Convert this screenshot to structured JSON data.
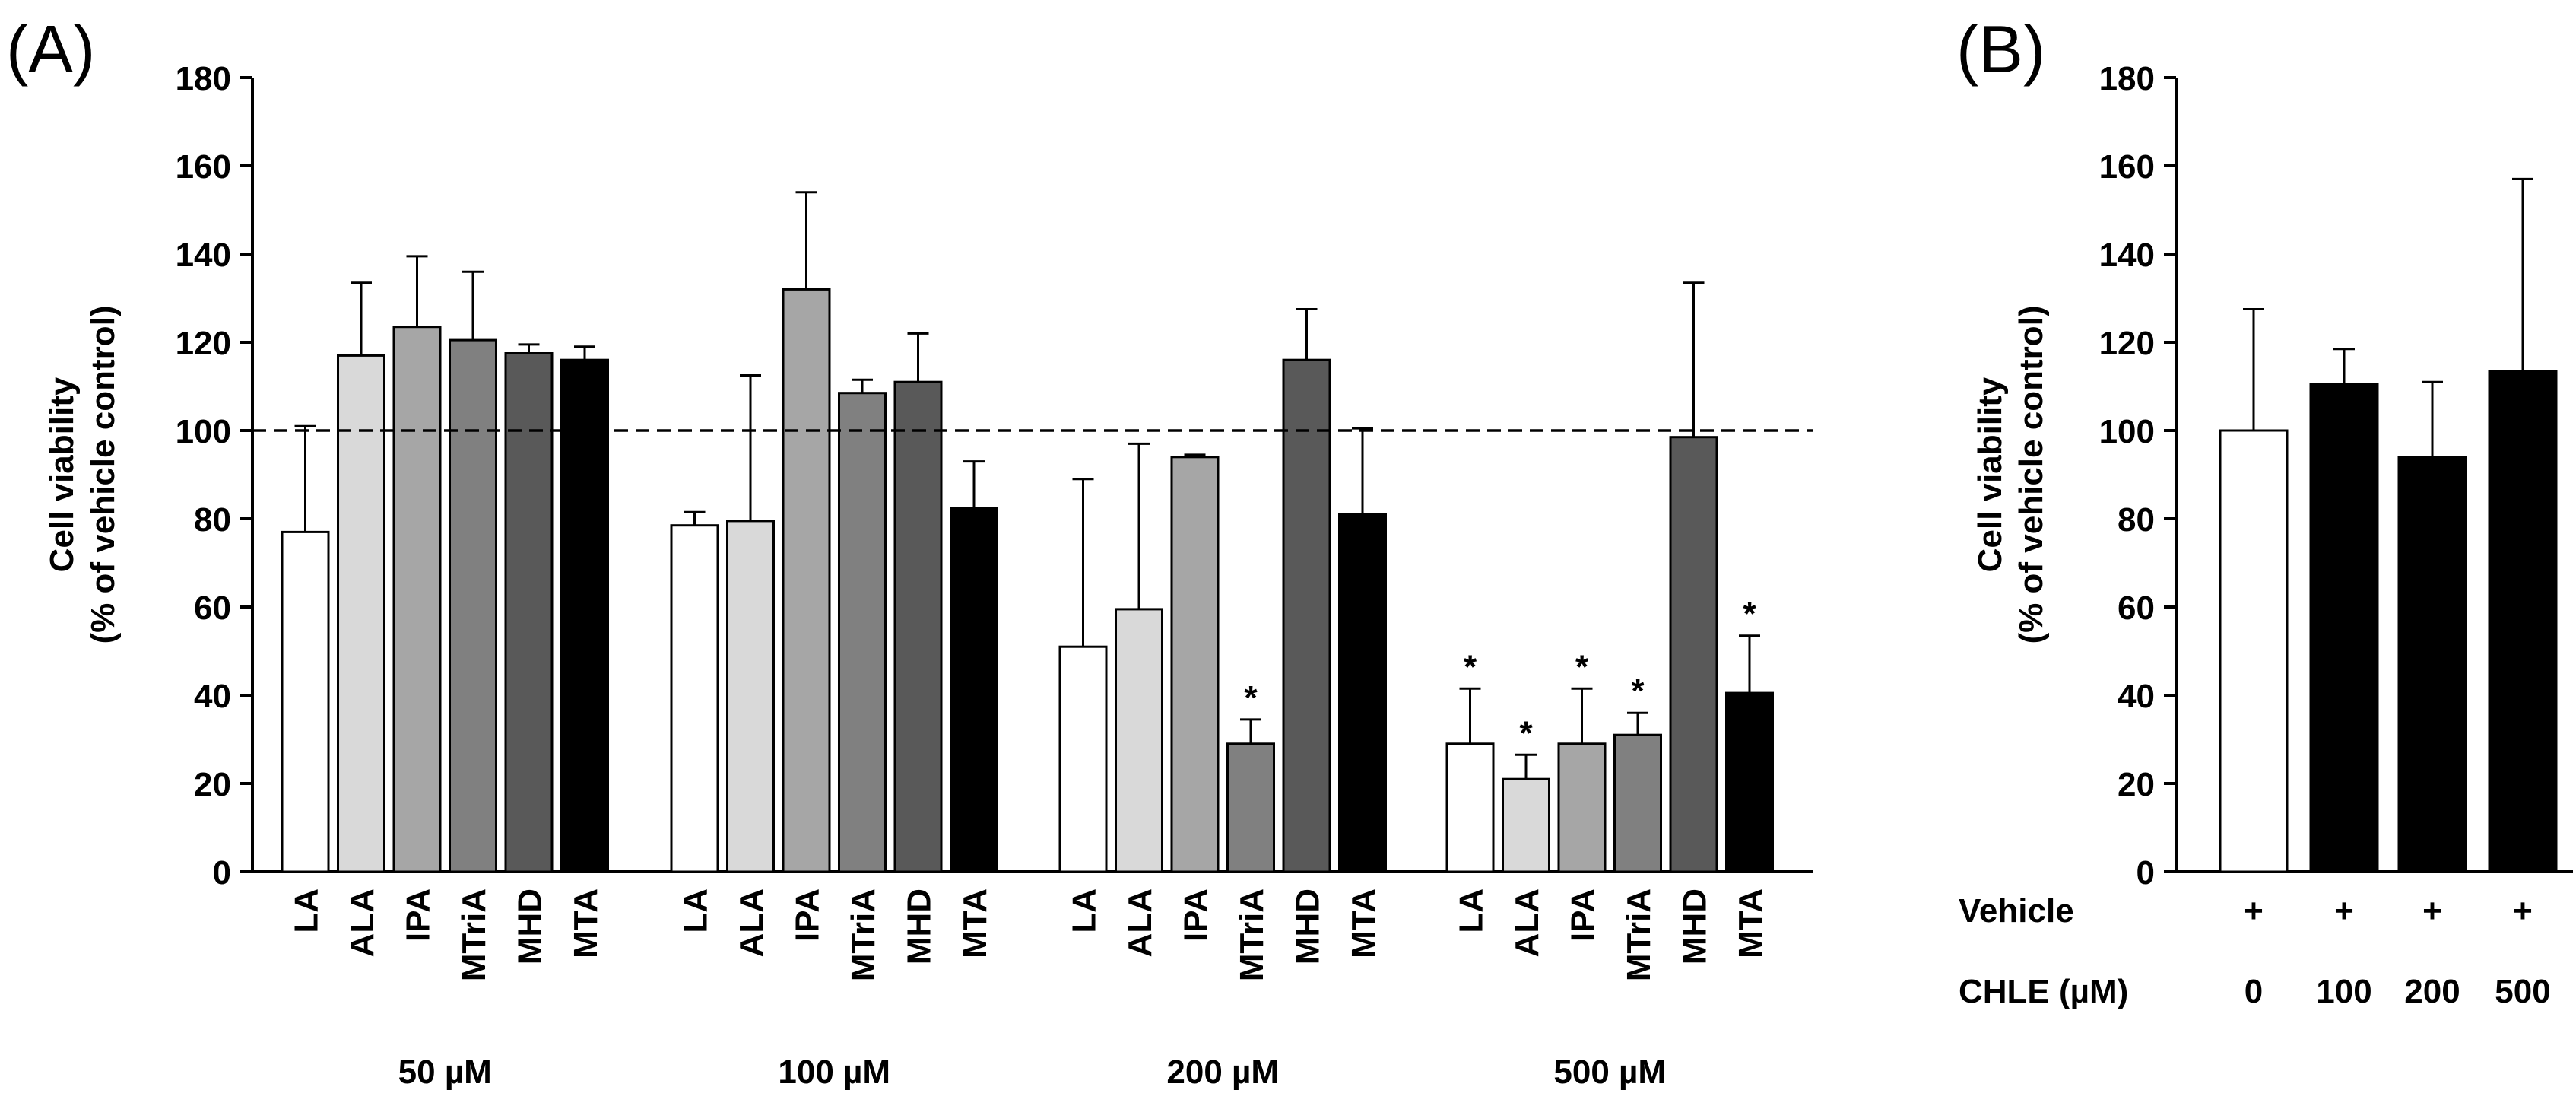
{
  "chart_data": [
    {
      "panel_label": "(A)",
      "type": "bar",
      "ylabel_line1": "Cell viability",
      "ylabel_line2": "(% of vehicle control)",
      "ylim": [
        0,
        180
      ],
      "yticks": [
        0,
        20,
        40,
        60,
        80,
        100,
        120,
        140,
        160,
        180
      ],
      "reference_line": 100,
      "series_colors": {
        "LA": "#ffffff",
        "ALA": "#d9d9d9",
        "IPA": "#a6a6a6",
        "MTriA": "#808080",
        "MHD": "#595959",
        "MTA": "#000000"
      },
      "groups": [
        {
          "label": "50 µM",
          "bars": [
            {
              "category": "LA",
              "value": 77,
              "error": 24,
              "significant": ""
            },
            {
              "category": "ALA",
              "value": 117,
              "error": 16.5,
              "significant": ""
            },
            {
              "category": "IPA",
              "value": 123.5,
              "error": 16,
              "significant": ""
            },
            {
              "category": "MTriA",
              "value": 120.5,
              "error": 15.5,
              "significant": ""
            },
            {
              "category": "MHD",
              "value": 117.5,
              "error": 2,
              "significant": ""
            },
            {
              "category": "MTA",
              "value": 116,
              "error": 3,
              "significant": ""
            }
          ]
        },
        {
          "label": "100 µM",
          "bars": [
            {
              "category": "LA",
              "value": 78.5,
              "error": 3,
              "significant": ""
            },
            {
              "category": "ALA",
              "value": 79.5,
              "error": 33,
              "significant": ""
            },
            {
              "category": "IPA",
              "value": 132,
              "error": 22,
              "significant": ""
            },
            {
              "category": "MTriA",
              "value": 108.5,
              "error": 3,
              "significant": ""
            },
            {
              "category": "MHD",
              "value": 111,
              "error": 11,
              "significant": ""
            },
            {
              "category": "MTA",
              "value": 82.5,
              "error": 10.5,
              "significant": ""
            }
          ]
        },
        {
          "label": "200 µM",
          "bars": [
            {
              "category": "LA",
              "value": 51,
              "error": 38,
              "significant": ""
            },
            {
              "category": "ALA",
              "value": 59.5,
              "error": 37.5,
              "significant": ""
            },
            {
              "category": "IPA",
              "value": 94,
              "error": 0.5,
              "significant": ""
            },
            {
              "category": "MTriA",
              "value": 29,
              "error": 5.5,
              "significant": "*"
            },
            {
              "category": "MHD",
              "value": 116,
              "error": 11.5,
              "significant": ""
            },
            {
              "category": "MTA",
              "value": 81,
              "error": 19.5,
              "significant": ""
            }
          ]
        },
        {
          "label": "500 µM",
          "bars": [
            {
              "category": "LA",
              "value": 29,
              "error": 12.5,
              "significant": "*"
            },
            {
              "category": "ALA",
              "value": 21,
              "error": 5.5,
              "significant": "*"
            },
            {
              "category": "IPA",
              "value": 29,
              "error": 12.5,
              "significant": "*"
            },
            {
              "category": "MTriA",
              "value": 31,
              "error": 5,
              "significant": "*"
            },
            {
              "category": "MHD",
              "value": 98.5,
              "error": 35,
              "significant": ""
            },
            {
              "category": "MTA",
              "value": 40.5,
              "error": 13,
              "significant": "*"
            }
          ]
        }
      ]
    },
    {
      "panel_label": "(B)",
      "type": "bar",
      "ylabel_line1": "Cell viability",
      "ylabel_line2": "(% of vehicle control)",
      "ylim": [
        0,
        180
      ],
      "yticks": [
        0,
        20,
        40,
        60,
        80,
        100,
        120,
        140,
        160,
        180
      ],
      "row_labels": [
        "Vehicle",
        "CHLE (µM)"
      ],
      "bars": [
        {
          "vehicle": "+",
          "chle": "0",
          "value": 100,
          "error": 27.5,
          "color": "#ffffff"
        },
        {
          "vehicle": "+",
          "chle": "100",
          "value": 110.5,
          "error": 8,
          "color": "#000000"
        },
        {
          "vehicle": "+",
          "chle": "200",
          "value": 94,
          "error": 17,
          "color": "#000000"
        },
        {
          "vehicle": "+",
          "chle": "500",
          "value": 113.5,
          "error": 43.5,
          "color": "#000000"
        }
      ]
    }
  ]
}
